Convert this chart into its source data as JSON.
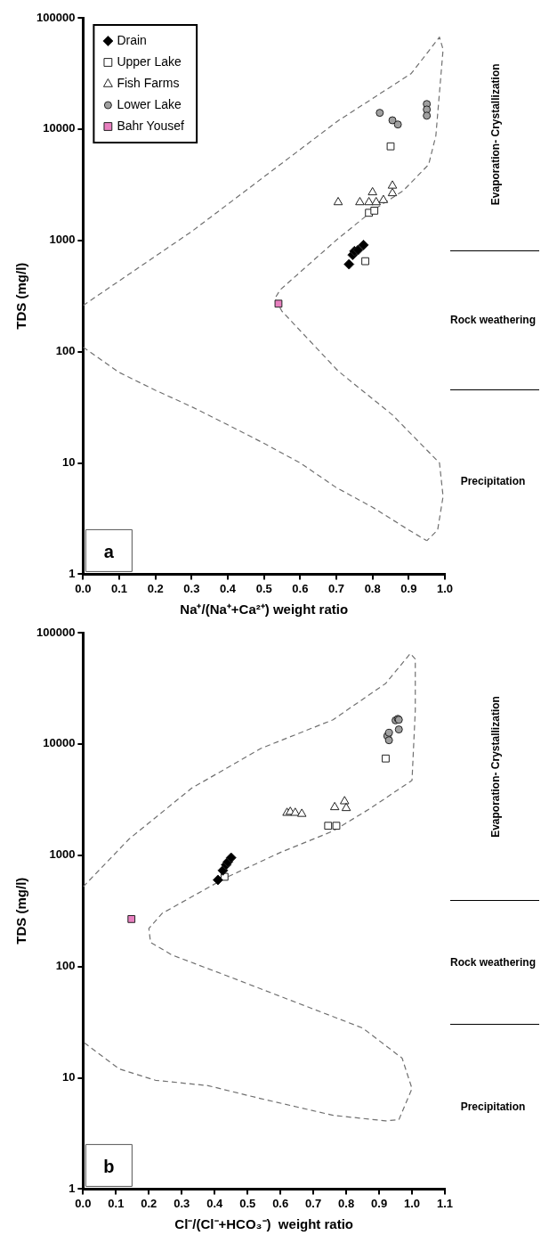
{
  "chart_data": [
    {
      "type": "scatter",
      "xlabel": "Na⁺/(Na⁺+Ca²⁺) weight ratio",
      "ylabel": "TDS (mg/l)",
      "xlim": [
        0,
        1
      ],
      "xticks": [
        {
          "value": 0,
          "label": "0.0"
        },
        {
          "value": 0.1,
          "label": "0.1"
        },
        {
          "value": 0.2,
          "label": "0.2"
        },
        {
          "value": 0.3,
          "label": "0.3"
        },
        {
          "value": 0.4,
          "label": "0.4"
        },
        {
          "value": 0.5,
          "label": "0.5"
        },
        {
          "value": 0.6,
          "label": "0.6"
        },
        {
          "value": 0.7,
          "label": "0.7"
        },
        {
          "value": 0.8,
          "label": "0.8"
        },
        {
          "value": 0.9,
          "label": "0.9"
        },
        {
          "value": 1,
          "label": "1.0"
        }
      ],
      "ylim": [
        1,
        100000
      ],
      "yticks": [
        1,
        10,
        100,
        1000,
        10000,
        100000
      ],
      "log": "y",
      "grid": false,
      "legend": "top left",
      "series": [
        {
          "name": "Drain",
          "marker": "diamond",
          "color": "#000000",
          "x": [
            0.735,
            0.745,
            0.75,
            0.76,
            0.775
          ],
          "values": [
            610,
            740,
            800,
            820,
            910
          ]
        },
        {
          "name": "Upper Lake",
          "marker": "square",
          "color": "#ffffff",
          "x": [
            0.78,
            0.79,
            0.805,
            0.85
          ],
          "values": [
            650,
            1770,
            1850,
            7000
          ]
        },
        {
          "name": "Fish Farms",
          "marker": "triangle",
          "color": "#ffffff",
          "x": [
            0.705,
            0.765,
            0.79,
            0.8,
            0.81,
            0.83,
            0.855,
            0.855
          ],
          "values": [
            2200,
            2200,
            2200,
            2700,
            2200,
            2300,
            2650,
            3100
          ]
        },
        {
          "name": "Lower Lake",
          "marker": "circle",
          "color": "#a0a0a0",
          "x": [
            0.82,
            0.855,
            0.87,
            0.95,
            0.95,
            0.95
          ],
          "values": [
            14000,
            12000,
            11000,
            16800,
            15000,
            13200
          ]
        },
        {
          "name": "Bahr Yousef",
          "marker": "square",
          "color": "#e87fbf",
          "x": [
            0.54
          ],
          "values": [
            270
          ]
        },
        {
          "type": "line",
          "line_style": "dashed",
          "marker": "none",
          "color": "#707070",
          "x": [
            0.0,
            0.3,
            0.705,
            0.907,
            0.985,
            0.995,
            0.975,
            0.955,
            0.885,
            0.805,
            0.705,
            0.545,
            0.53,
            0.55,
            0.705,
            0.855,
            0.985,
            0.995,
            0.98,
            0.95
          ],
          "values": [
            260,
            1200,
            11900,
            31600,
            67000,
            52000,
            8700,
            4800,
            2800,
            1900,
            1040,
            360,
            300,
            230,
            67,
            27,
            10,
            5,
            2.5,
            2
          ]
        },
        {
          "type": "line",
          "line_style": "dashed",
          "marker": "none",
          "color": "#707070",
          "x": [
            0.0,
            0.1,
            0.2,
            0.3,
            0.4,
            0.5,
            0.6,
            0.7,
            0.8,
            0.9,
            0.95
          ],
          "values": [
            110,
            65,
            45,
            32,
            22,
            15,
            10,
            6,
            4,
            2.5,
            2
          ]
        }
      ],
      "annotations": [
        "a",
        "Evaporation- Crystallization",
        "Rock weathering",
        "Precipitation"
      ]
    },
    {
      "type": "scatter",
      "xlabel": "Cl⁻/(Cl⁻+HCO₃⁻)  weight ratio",
      "ylabel": "TDS (mg/l)",
      "xlim": [
        0,
        1.1
      ],
      "xticks": [
        {
          "value": 0,
          "label": "0.0"
        },
        {
          "value": 0.1,
          "label": "0.1"
        },
        {
          "value": 0.2,
          "label": "0.2"
        },
        {
          "value": 0.3,
          "label": "0.3"
        },
        {
          "value": 0.4,
          "label": "0.4"
        },
        {
          "value": 0.5,
          "label": "0.5"
        },
        {
          "value": 0.6,
          "label": "0.6"
        },
        {
          "value": 0.7,
          "label": "0.7"
        },
        {
          "value": 0.8,
          "label": "0.8"
        },
        {
          "value": 0.9,
          "label": "0.9"
        },
        {
          "value": 1,
          "label": "1.0"
        },
        {
          "value": 1.1,
          "label": "1.1"
        }
      ],
      "ylim": [
        1,
        100000
      ],
      "yticks": [
        1,
        10,
        100,
        1000,
        10000,
        100000
      ],
      "log": "y",
      "grid": false,
      "series": [
        {
          "marker": "diamond",
          "color": "#000000",
          "x": [
            0.41,
            0.425,
            0.435,
            0.44,
            0.45
          ],
          "values": [
            600,
            730,
            820,
            870,
            950
          ]
        },
        {
          "marker": "square",
          "color": "#ffffff",
          "x": [
            0.43,
            0.745,
            0.77,
            0.92
          ],
          "values": [
            640,
            1840,
            1840,
            7400
          ]
        },
        {
          "marker": "triangle",
          "color": "#ffffff",
          "x": [
            0.62,
            0.63,
            0.645,
            0.665,
            0.765,
            0.795,
            0.8
          ],
          "values": [
            2400,
            2450,
            2400,
            2350,
            2700,
            3050,
            2650
          ]
        },
        {
          "marker": "circle",
          "color": "#a0a0a0",
          "x": [
            0.925,
            0.93,
            0.93,
            0.95,
            0.957,
            0.96,
            0.96
          ],
          "values": [
            11800,
            12600,
            10800,
            16300,
            16800,
            16500,
            13500
          ]
        },
        {
          "marker": "square",
          "color": "#e87fbf",
          "x": [
            0.147
          ],
          "values": [
            267
          ]
        },
        {
          "type": "line",
          "line_style": "dashed",
          "marker": "none",
          "color": "#707070",
          "x": [
            0.0,
            0.14,
            0.33,
            0.54,
            0.76,
            0.92,
            0.995,
            1.01,
            1.01,
            1.0,
            0.87,
            0.76,
            0.6,
            0.435,
            0.24,
            0.2,
            0.205,
            0.27,
            0.435,
            0.85,
            0.97,
            1.0,
            0.96,
            0.92,
            0.76,
            0.54,
            0.38,
            0.22,
            0.11,
            0.0
          ],
          "values": [
            520,
            1400,
            4000,
            9100,
            16500,
            35000,
            65000,
            58000,
            20000,
            4700,
            2600,
            1650,
            1060,
            630,
            300,
            220,
            165,
            127,
            83,
            28,
            15,
            8,
            4.2,
            4.1,
            4.6,
            6.5,
            8.5,
            9.5,
            12,
            21
          ]
        }
      ],
      "annotations": [
        "b",
        "Evaporation- Crystallization",
        "Rock weathering",
        "Precipitation"
      ]
    }
  ]
}
